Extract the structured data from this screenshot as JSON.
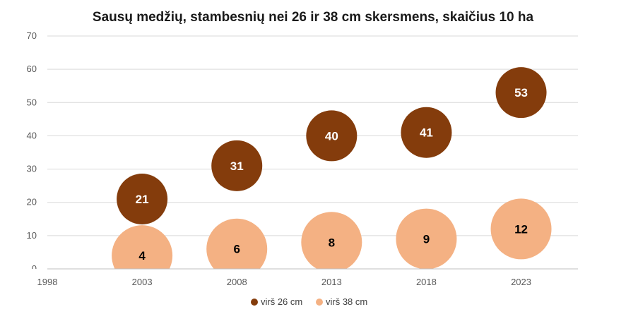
{
  "chart_data": {
    "type": "bubble",
    "title": "Sausų medžių, stambesnių nei 26 ir 38 cm skersmens, skaičius 10 ha",
    "xlabel": "",
    "ylabel": "",
    "xlim": [
      1998,
      2026
    ],
    "ylim": [
      0,
      70
    ],
    "x_ticks": [
      "1998",
      "2003",
      "2008",
      "2013",
      "2018",
      "2023"
    ],
    "y_ticks": [
      "0",
      "10",
      "20",
      "30",
      "40",
      "50",
      "60",
      "70"
    ],
    "grid": true,
    "legend_position": "bottom",
    "series": [
      {
        "name": "virš 26 cm",
        "color": "#843C0C",
        "label_color": "#ffffff",
        "points": [
          {
            "x": 2003,
            "y": 21,
            "label": "21"
          },
          {
            "x": 2008,
            "y": 31,
            "label": "31"
          },
          {
            "x": 2013,
            "y": 40,
            "label": "40"
          },
          {
            "x": 2018,
            "y": 41,
            "label": "41"
          },
          {
            "x": 2023,
            "y": 53,
            "label": "53"
          }
        ]
      },
      {
        "name": "virš 38 cm",
        "color": "#F4B183",
        "label_color": "#000000",
        "points": [
          {
            "x": 2003,
            "y": 4,
            "label": "4"
          },
          {
            "x": 2008,
            "y": 6,
            "label": "6"
          },
          {
            "x": 2013,
            "y": 8,
            "label": "8"
          },
          {
            "x": 2018,
            "y": 9,
            "label": "9"
          },
          {
            "x": 2023,
            "y": 12,
            "label": "12"
          }
        ]
      }
    ]
  }
}
